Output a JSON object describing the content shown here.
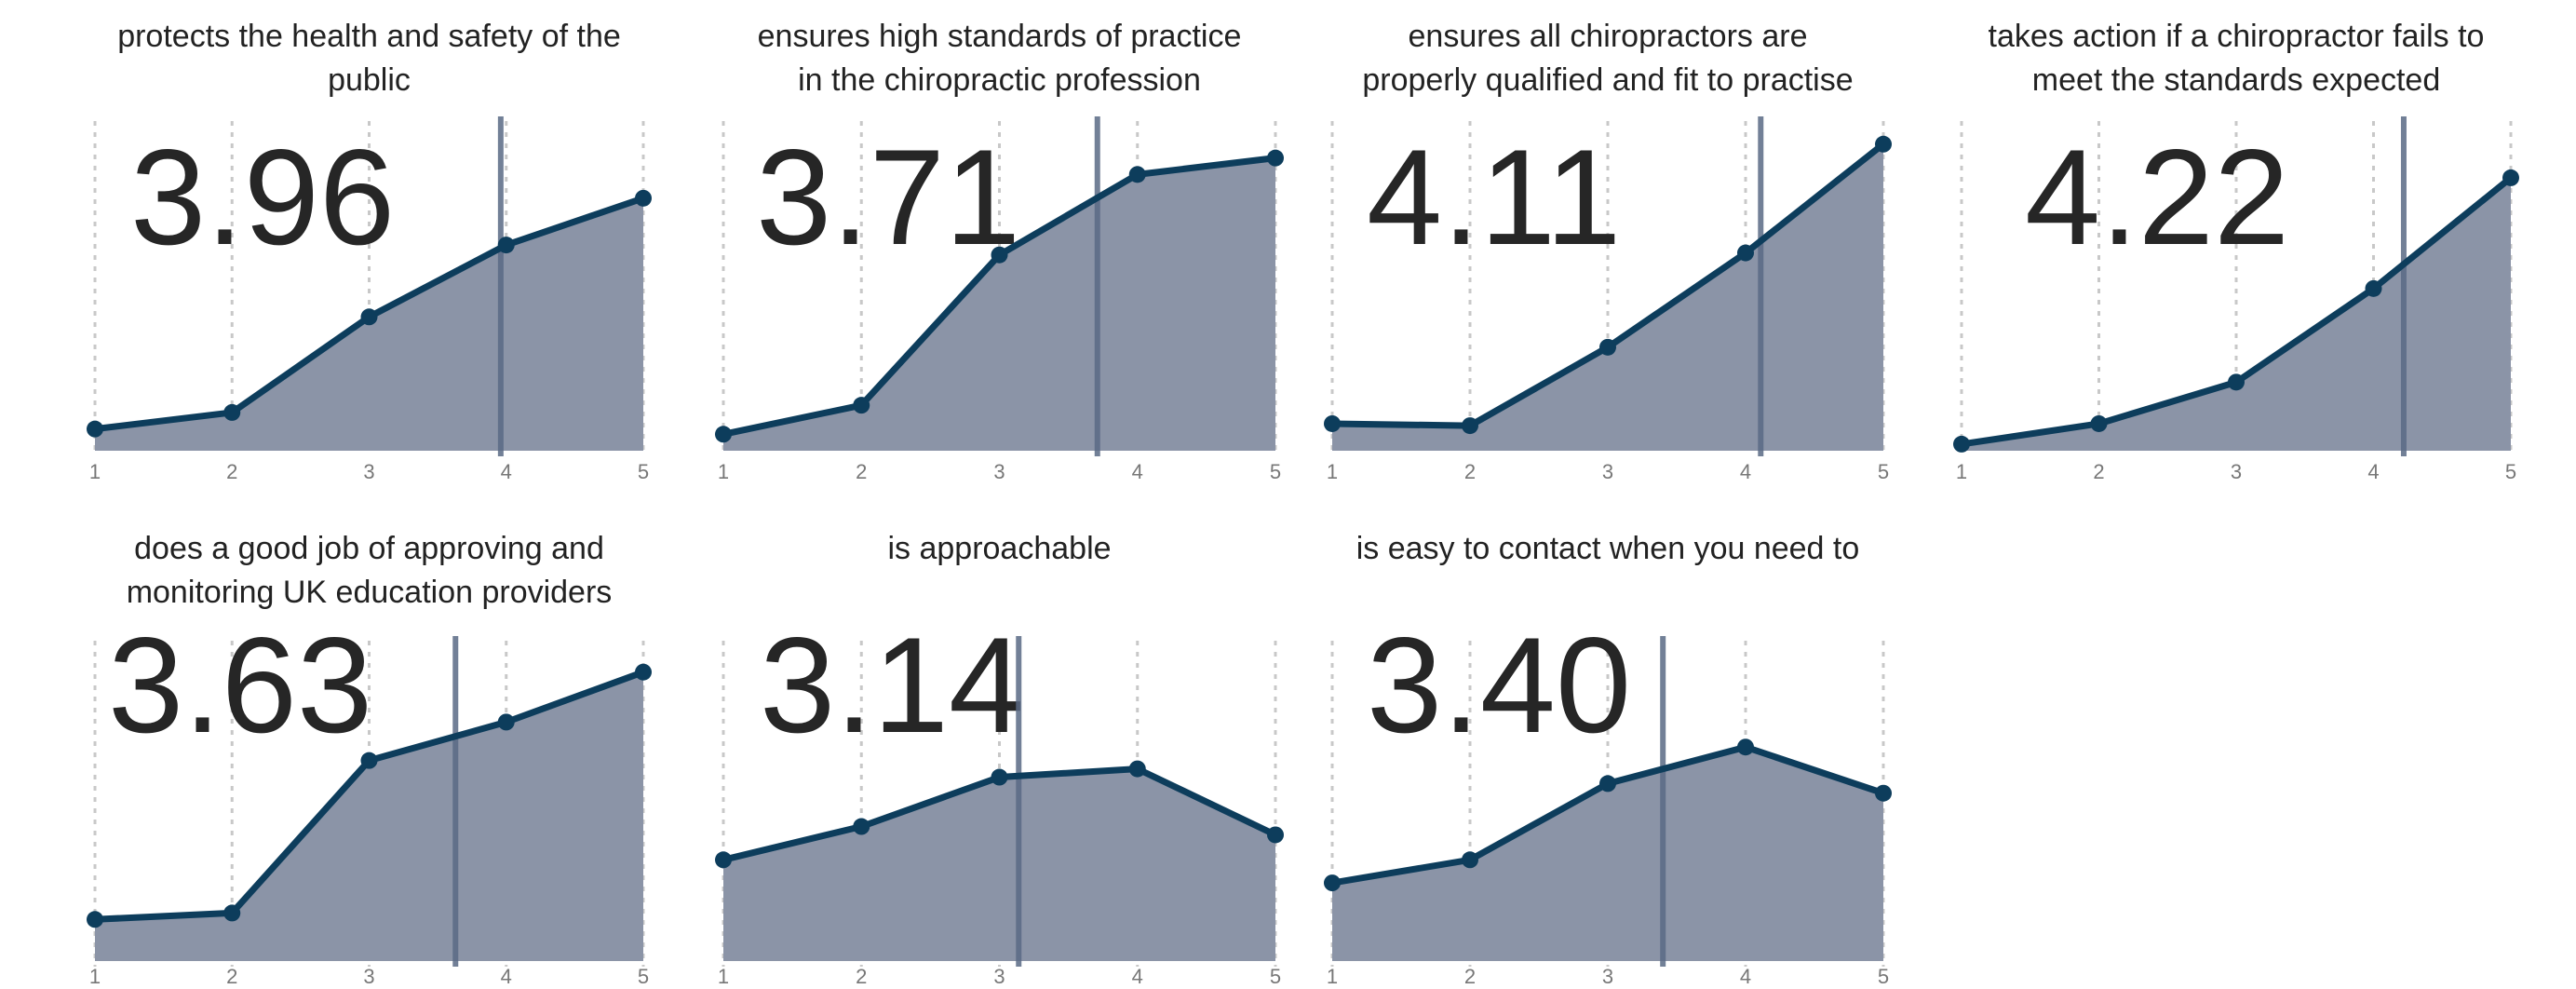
{
  "colors": {
    "area": "#8b94a7",
    "line": "#0d3d5c",
    "mean_line": "#5a6a85",
    "grid": "#c8c8c8"
  },
  "chart_data": [
    {
      "type": "area",
      "title": [
        "protects the health and safety of the",
        "public"
      ],
      "mean": "3.96",
      "categories": [
        1,
        2,
        3,
        4,
        5
      ],
      "values": [
        3.3,
        5.8,
        20.3,
        31.2,
        38.3
      ],
      "ylim": [
        0,
        50
      ],
      "grid": "vertical dashed"
    },
    {
      "type": "area",
      "title": [
        "ensures high standards of practice",
        "in the chiropractic profession"
      ],
      "mean": "3.71",
      "categories": [
        1,
        2,
        3,
        4,
        5
      ],
      "values": [
        2.5,
        6.9,
        29.7,
        41.9,
        44.4
      ],
      "ylim": [
        0,
        50
      ],
      "grid": "vertical dashed"
    },
    {
      "type": "area",
      "title": [
        "ensures all chiropractors are",
        "properly qualified and fit to practise"
      ],
      "mean": "4.11",
      "categories": [
        1,
        2,
        3,
        4,
        5
      ],
      "values": [
        4.1,
        3.8,
        15.7,
        30.0,
        46.5
      ],
      "ylim": [
        0,
        50
      ],
      "grid": "vertical dashed"
    },
    {
      "type": "area",
      "title": [
        "takes action if a chiropractor fails to",
        "meet the standards expected"
      ],
      "mean": "4.22",
      "categories": [
        1,
        2,
        3,
        4,
        5
      ],
      "values": [
        1.0,
        4.1,
        10.4,
        24.6,
        41.4
      ],
      "ylim": [
        0,
        50
      ],
      "grid": "vertical dashed"
    },
    {
      "type": "area",
      "title": [
        "does a good job of approving and",
        "monitoring UK education providers"
      ],
      "mean": "3.63",
      "categories": [
        1,
        2,
        3,
        4,
        5
      ],
      "values": [
        6.5,
        7.5,
        31.3,
        37.3,
        45.1
      ],
      "ylim": [
        0,
        50
      ],
      "grid": "vertical dashed"
    },
    {
      "type": "area",
      "title": [
        "is approachable"
      ],
      "mean": "3.14",
      "categories": [
        1,
        2,
        3,
        4,
        5
      ],
      "values": [
        15.8,
        21.0,
        28.7,
        30.0,
        19.7
      ],
      "ylim": [
        0,
        50
      ],
      "grid": "vertical dashed"
    },
    {
      "type": "area",
      "title": [
        "is easy to contact when you need to"
      ],
      "mean": "3.40",
      "categories": [
        1,
        2,
        3,
        4,
        5
      ],
      "values": [
        12.2,
        15.8,
        27.7,
        33.4,
        26.2
      ],
      "ylim": [
        0,
        50
      ],
      "grid": "vertical dashed"
    }
  ]
}
